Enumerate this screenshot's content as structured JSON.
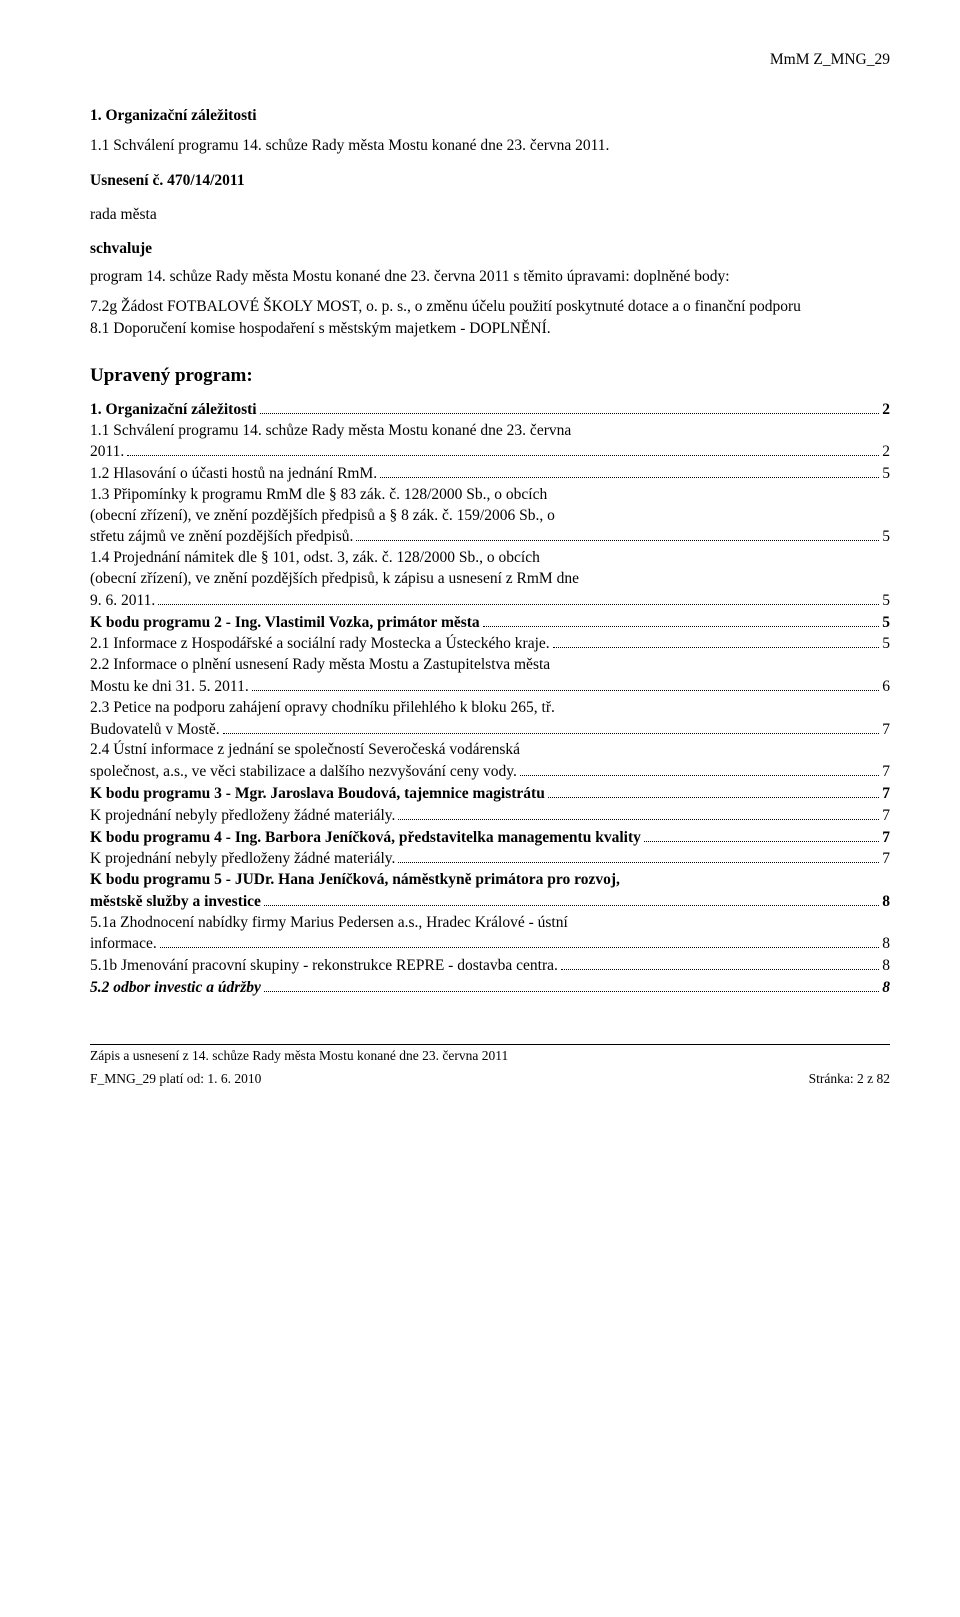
{
  "header_code": "MmM Z_MNG_29",
  "h1": "1. Organizační záležitosti",
  "h1_sub": "1.1 Schválení programu 14. schůze Rady města Mostu konané dne 23. června 2011.",
  "usneseni": "Usnesení č. 470/14/2011",
  "rada": "rada města",
  "schvaluje": "schvaluje",
  "program_para": "program 14. schůze Rady města Mostu konané dne 23. června 2011 s těmito úpravami: doplněné body:",
  "items": [
    "7.2g   Žádost FOTBALOVÉ ŠKOLY MOST, o. p. s., o změnu účelu použití poskytnuté dotace a o finanční podporu",
    "8.1     Doporučení komise hospodaření s městským  majetkem - DOPLNĚNÍ."
  ],
  "upraveny_title": "Upravený program:",
  "toc": [
    {
      "text": "1. Organizační záležitosti",
      "page": "2",
      "bold": true
    },
    {
      "text": "1.1    Schválení programu 14. schůze Rady města Mostu konané dne 23. června",
      "cont": "2011.",
      "page": "2"
    },
    {
      "text": "1.2    Hlasování o účasti hostů na jednání RmM.",
      "page": "5"
    },
    {
      "text": "1.3    Připomínky k programu RmM dle § 83 zák. č. 128/2000 Sb., o obcích",
      "cont": "(obecní zřízení), ve znění pozdějších předpisů a § 8 zák. č. 159/2006 Sb., o",
      "cont2": "střetu zájmů ve znění pozdějších předpisů.",
      "page": "5"
    },
    {
      "text": "1.4    Projednání námitek dle § 101, odst. 3, zák. č. 128/2000 Sb., o obcích",
      "cont": "(obecní zřízení), ve znění pozdějších předpisů, k zápisu a usnesení z RmM dne",
      "cont2": "9. 6. 2011.",
      "page": "5"
    },
    {
      "text": "K bodu programu 2 - Ing. Vlastimil Vozka, primátor města",
      "page": "5",
      "bold": true
    },
    {
      "text": "2.1    Informace z Hospodářské a sociální rady Mostecka a Ústeckého kraje.",
      "page": "5"
    },
    {
      "text": "2.2    Informace o plnění usnesení Rady města Mostu a Zastupitelstva města",
      "cont": "Mostu ke dni 31. 5. 2011.",
      "page": "6"
    },
    {
      "text": "2.3    Petice na podporu zahájení opravy chodníku přilehlého k bloku 265, tř.",
      "cont": "Budovatelů v Mostě.",
      "page": "7"
    },
    {
      "text": "2.4    Ústní informace  z jednání  se společností  Severočeská  vodárenská",
      "cont": "společnost, a.s., ve věci stabilizace a dalšího nezvyšování ceny vody.",
      "page": "7"
    },
    {
      "text": "K bodu programu 3 - Mgr. Jaroslava Boudová, tajemnice magistrátu",
      "page": "7",
      "bold": true
    },
    {
      "text": "K projednání nebyly předloženy žádné materiály.",
      "page": "7"
    },
    {
      "text": "K bodu programu 4 - Ing. Barbora Jeníčková, představitelka managementu kvality",
      "page": "7",
      "bold": true
    },
    {
      "text": "K projednání nebyly předloženy žádné materiály.",
      "page": "7"
    },
    {
      "text": "K bodu programu 5 - JUDr. Hana Jeníčková, náměstkyně primátora pro rozvoj,",
      "cont_bold": "městskě služby a investice",
      "page": "8",
      "bold": true
    },
    {
      "text": "5.1a   Zhodnocení nabídky firmy Marius Pedersen a.s., Hradec Králové - ústní",
      "cont": "informace.",
      "page": "8"
    },
    {
      "text": "5.1b   Jmenování pracovní skupiny - rekonstrukce REPRE - dostavba centra.",
      "page": "8"
    },
    {
      "text": "5.2    odbor investic a údržby",
      "page": "8",
      "bold_italic": true
    }
  ],
  "footer_line1": "Zápis a usnesení z 14. schůze Rady města Mostu konané dne 23. června 2011",
  "footer_left": "F_MNG_29 platí od: 1. 6. 2010",
  "footer_right": "Stránka: 2 z 82"
}
